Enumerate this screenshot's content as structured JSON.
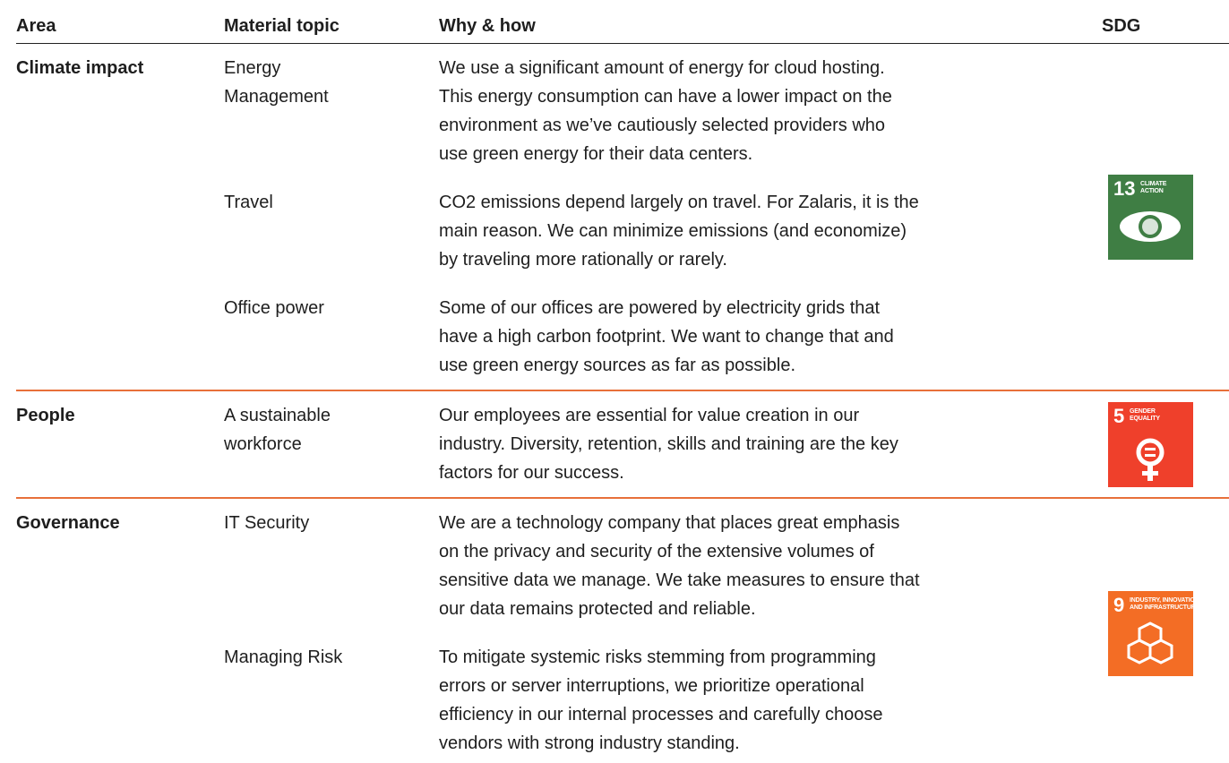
{
  "header": [
    "Area",
    "Material topic",
    "Why & how",
    "SDG"
  ],
  "groups": [
    {
      "area": "Climate impact",
      "rows": [
        {
          "topic": [
            "Energy",
            "Management"
          ],
          "text": [
            "We use a significant amount of energy for cloud hosting.",
            "This energy consumption can have a lower impact on the",
            "environment as we’ve cautiously selected providers who",
            "use green energy for their data centers."
          ]
        },
        {
          "topic": [
            "Travel"
          ],
          "text": [
            "CO2 emissions depend largely on travel. For Zalaris, it is the",
            "main reason. We can minimize emissions (and economize)",
            "by traveling more rationally or rarely."
          ]
        },
        {
          "topic": [
            "Office power"
          ],
          "text": [
            "Some of our offices are powered by electricity grids that",
            "have a high carbon footprint. We want to change that and",
            "use green energy sources as far as possible."
          ]
        }
      ],
      "sdg": {
        "number": "13",
        "label": [
          "CLIMATE",
          "ACTION"
        ],
        "color": "#3f7e44"
      }
    },
    {
      "area": "People",
      "rows": [
        {
          "topic": [
            "A sustainable",
            "workforce"
          ],
          "text": [
            "Our employees are essential for value creation in our",
            "industry. Diversity, retention, skills and training are the key",
            "factors for our success."
          ]
        }
      ],
      "sdg": {
        "number": "5",
        "label": [
          "GENDER",
          "EQUALITY"
        ],
        "color": "#ef402b"
      }
    },
    {
      "area": "Governance",
      "rows": [
        {
          "topic": [
            "IT Security"
          ],
          "text": [
            "We are a technology company that places great emphasis",
            "on the privacy and security of the extensive volumes of",
            "sensitive data we manage. We take measures to ensure that",
            "our data remains protected and reliable."
          ]
        },
        {
          "topic": [
            "Managing Risk"
          ],
          "text": [
            "To mitigate systemic risks stemming from programming",
            "errors or server interruptions, we prioritize operational",
            "efficiency in our internal processes and carefully choose",
            "vendors with strong industry standing."
          ]
        }
      ],
      "sdg": {
        "number": "9",
        "label": [
          "INDUSTRY, INNOVATION",
          "AND INFRASTRUCTURE"
        ],
        "color": "#f36d25"
      }
    }
  ]
}
